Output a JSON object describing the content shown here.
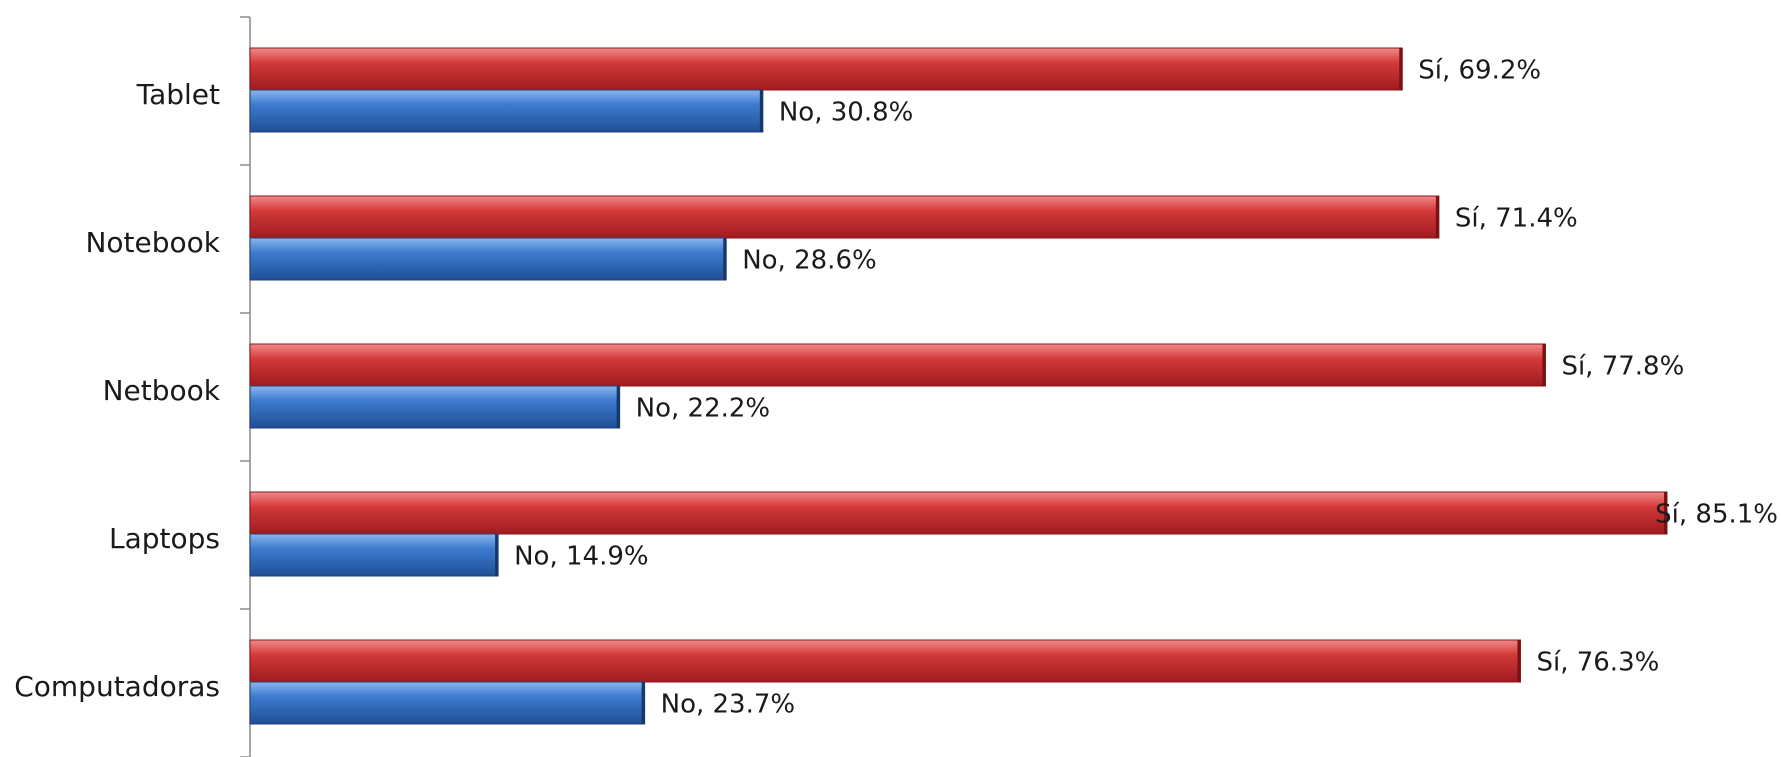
{
  "chart_data": {
    "type": "bar",
    "orientation": "horizontal",
    "categories": [
      "Computadoras",
      "Laptops",
      "Netbook",
      "Notebook",
      "Tablet"
    ],
    "series": [
      {
        "name": "Sí",
        "values": [
          76.3,
          85.1,
          77.8,
          71.4,
          69.2
        ],
        "color": "#c0272d"
      },
      {
        "name": "No",
        "values": [
          23.7,
          14.9,
          22.2,
          28.6,
          30.8
        ],
        "color": "#2f6bc0"
      }
    ],
    "data_labels": {
      "Sí": [
        "Sí, 76.3%",
        "Sí, 85.1%",
        "Sí, 77.8%",
        "Sí, 71.4%",
        "Sí, 69.2%"
      ],
      "No": [
        "No, 23.7%",
        "No, 14.9%",
        "No, 22.2%",
        "No, 28.6%",
        "No, 30.8%"
      ]
    },
    "xlim": [
      0,
      85.1
    ],
    "grid": false,
    "legend": "none",
    "title": "",
    "xlabel": "",
    "ylabel": ""
  }
}
